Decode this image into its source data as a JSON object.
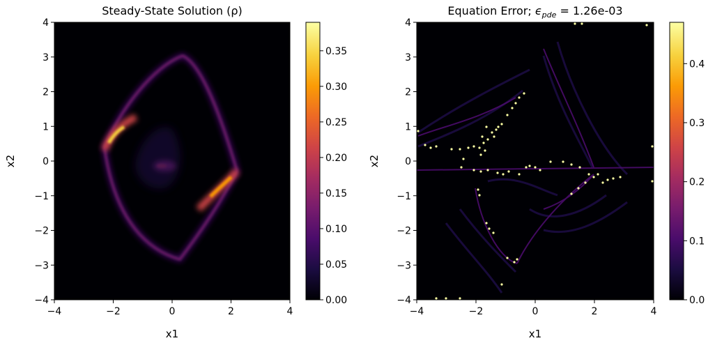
{
  "chart_data": [
    {
      "type": "heatmap",
      "title": "Steady-State Solution (ρ)",
      "xlabel": "x1",
      "ylabel": "x2",
      "xlim": [
        -4,
        4
      ],
      "ylim": [
        -4,
        4
      ],
      "x_ticks": [
        "−4",
        "−2",
        "0",
        "2",
        "4"
      ],
      "y_ticks": [
        "−4",
        "−3",
        "−2",
        "−1",
        "0",
        "1",
        "2",
        "3",
        "4"
      ],
      "colormap": "inferno",
      "colorbar": {
        "range": [
          0.0,
          0.39
        ],
        "ticks": [
          "0.00",
          "0.05",
          "0.10",
          "0.15",
          "0.20",
          "0.25",
          "0.30",
          "0.35"
        ]
      },
      "features": {
        "ring_vertices": [
          [
            -2.2,
            0.4
          ],
          [
            -0.3,
            3.5
          ],
          [
            2.1,
            -0.3
          ],
          [
            0.2,
            -3.5
          ]
        ],
        "hotspots": [
          {
            "x": -2.0,
            "y": 0.6,
            "value": 0.38
          },
          {
            "x": 1.7,
            "y": -0.8,
            "value": 0.35
          },
          {
            "x": -0.2,
            "y": -0.2,
            "value": 0.12
          }
        ]
      }
    },
    {
      "type": "heatmap",
      "title": "Equation Error; ϵpde = 1.26e-03",
      "title_parts": {
        "prefix": "Equation Error; ",
        "symbol": "ϵ",
        "subscript": "pde",
        "suffix": " = 1.26e-03"
      },
      "xlabel": "x1",
      "ylabel": "x2",
      "xlim": [
        -4,
        4
      ],
      "ylim": [
        -4,
        4
      ],
      "x_ticks": [
        "−4",
        "−2",
        "0",
        "2",
        "4"
      ],
      "y_ticks": [
        "−4",
        "−3",
        "−2",
        "−1",
        "0",
        "1",
        "2",
        "3",
        "4"
      ],
      "colormap": "inferno",
      "colorbar": {
        "range": [
          0.0,
          0.47
        ],
        "ticks": [
          "0.0",
          "0.1",
          "0.2",
          "0.3",
          "0.4"
        ]
      }
    }
  ],
  "colors": {
    "inferno": [
      "#000004",
      "#1b0c41",
      "#4a0c6b",
      "#781c6d",
      "#a52c60",
      "#cf4446",
      "#ed6925",
      "#fb9b06",
      "#f7d13d",
      "#fcffa4"
    ]
  }
}
